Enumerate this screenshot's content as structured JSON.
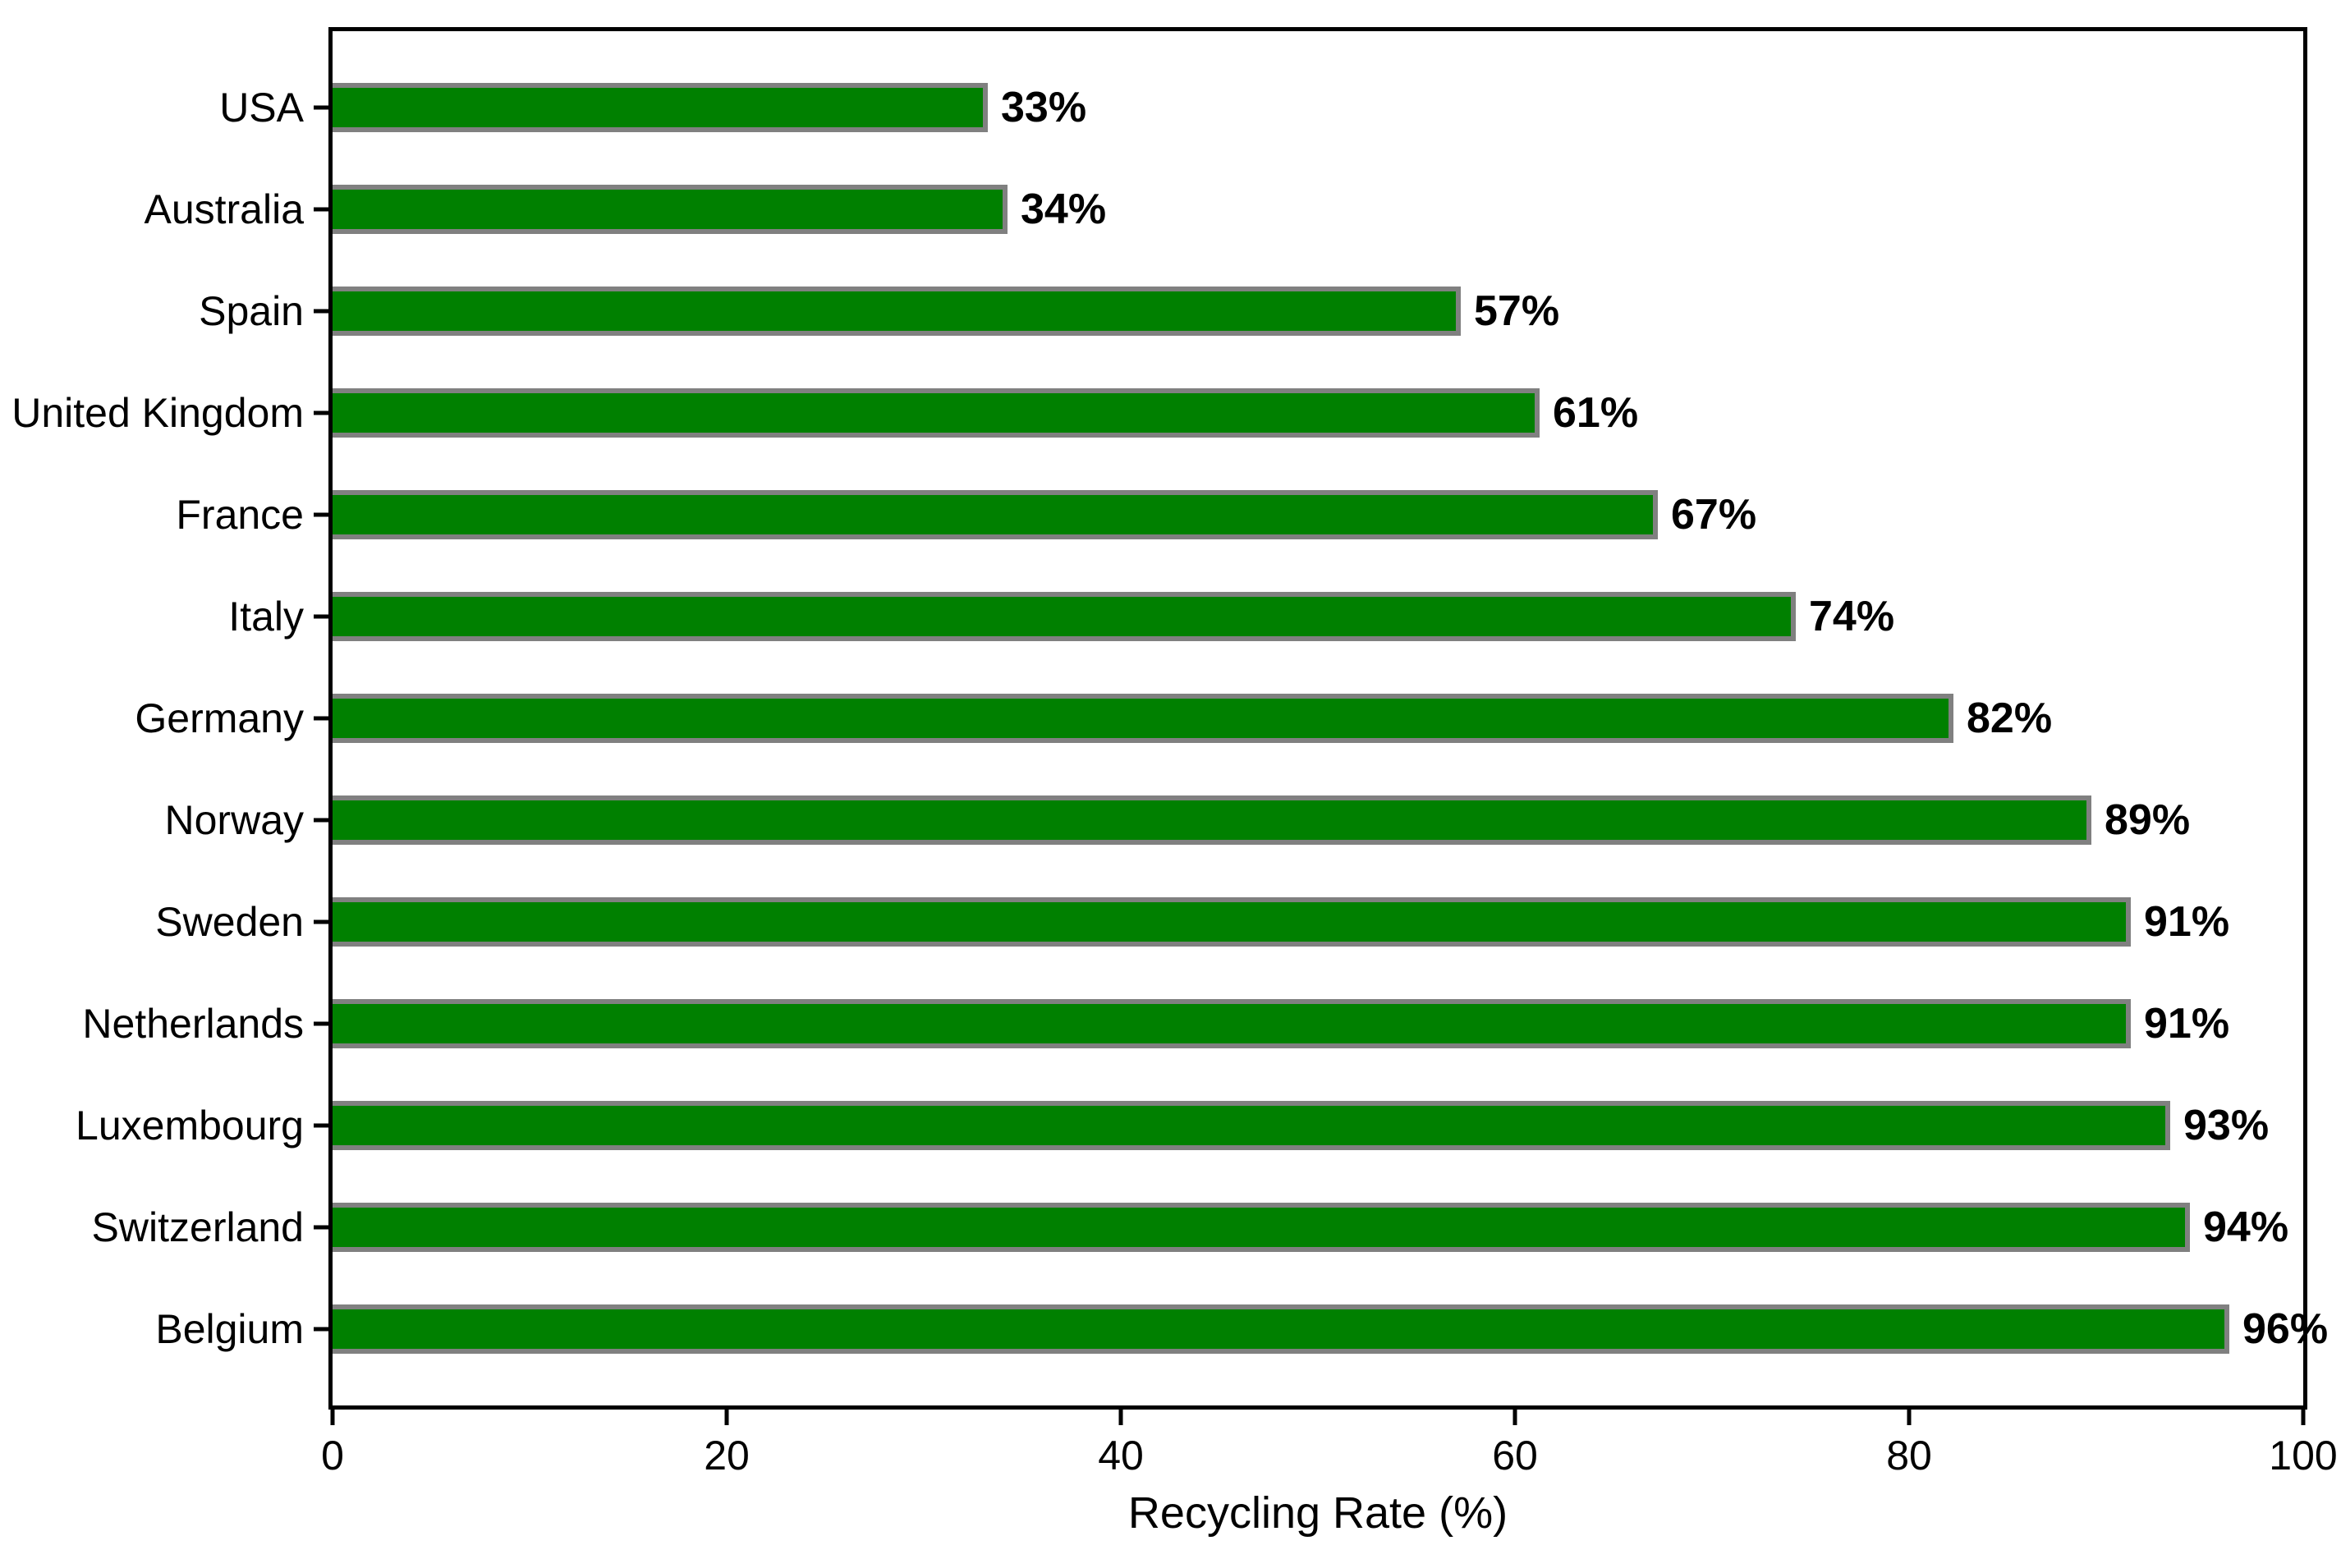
{
  "chart_data": {
    "type": "bar",
    "orientation": "horizontal",
    "xlabel": "Recycling Rate (%)",
    "categories": [
      "USA",
      "Australia",
      "Spain",
      "United Kingdom",
      "France",
      "Italy",
      "Germany",
      "Norway",
      "Sweden",
      "Netherlands",
      "Luxembourg",
      "Switzerland",
      "Belgium"
    ],
    "values": [
      33,
      34,
      57,
      61,
      67,
      74,
      82,
      89,
      91,
      91,
      93,
      94,
      96
    ],
    "value_labels": [
      "33%",
      "34%",
      "57%",
      "61%",
      "67%",
      "74%",
      "82%",
      "89%",
      "91%",
      "91%",
      "93%",
      "94%",
      "96%"
    ],
    "x_ticks": [
      "0",
      "20",
      "40",
      "60",
      "80",
      "100"
    ],
    "x_tick_values": [
      0,
      20,
      40,
      60,
      80,
      100
    ],
    "xlim": [
      0,
      100
    ],
    "grid": false,
    "legend": "none",
    "colors": {
      "bar_fill": "#008000",
      "bar_edge": "#808080",
      "axis": "#000000",
      "text": "#000000",
      "background": "#ffffff"
    }
  }
}
